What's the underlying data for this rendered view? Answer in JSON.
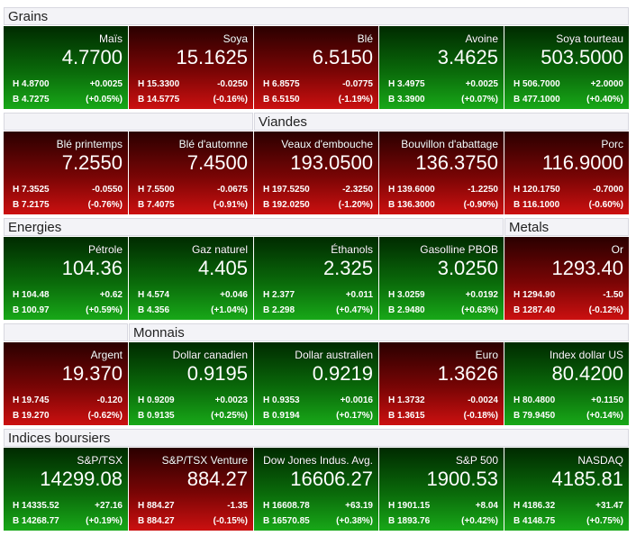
{
  "colors": {
    "up": "#18a818",
    "down": "#cc1010",
    "header_bg": "#f3f3f7"
  },
  "sections": [
    {
      "headers": [
        {
          "label": "Grains",
          "cols": [
            0,
            5
          ]
        }
      ],
      "tiles": [
        {
          "name": "Maïs",
          "price": "4.7700",
          "high": "H 4.8700",
          "low": "B 4.7275",
          "change": "+0.0025",
          "pct": "(+0.05%)",
          "dir": "up"
        },
        {
          "name": "Soya",
          "price": "15.1625",
          "high": "H 15.3300",
          "low": "B 14.5775",
          "change": "-0.0250",
          "pct": "(-0.16%)",
          "dir": "down"
        },
        {
          "name": "Blé",
          "price": "6.5150",
          "high": "H 6.8575",
          "low": "B 6.5150",
          "change": "-0.0775",
          "pct": "(-1.19%)",
          "dir": "down"
        },
        {
          "name": "Avoine",
          "price": "3.4625",
          "high": "H 3.4975",
          "low": "B 3.3900",
          "change": "+0.0025",
          "pct": "(+0.07%)",
          "dir": "up"
        },
        {
          "name": "Soya tourteau",
          "price": "503.5000",
          "high": "H 506.7000",
          "low": "B 477.1000",
          "change": "+2.0000",
          "pct": "(+0.40%)",
          "dir": "up"
        }
      ]
    },
    {
      "headers": [
        {
          "label": "",
          "cols": [
            0,
            2
          ]
        },
        {
          "label": "Viandes",
          "cols": [
            2,
            5
          ]
        }
      ],
      "tiles": [
        {
          "name": "Blé printemps",
          "price": "7.2550",
          "high": "H 7.3525",
          "low": "B 7.2175",
          "change": "-0.0550",
          "pct": "(-0.76%)",
          "dir": "down"
        },
        {
          "name": "Blé d'automne",
          "price": "7.4500",
          "high": "H 7.5500",
          "low": "B 7.4075",
          "change": "-0.0675",
          "pct": "(-0.91%)",
          "dir": "down"
        },
        {
          "name": "Veaux d'embouche",
          "price": "193.0500",
          "high": "H 197.5250",
          "low": "B 192.0250",
          "change": "-2.3250",
          "pct": "(-1.20%)",
          "dir": "down"
        },
        {
          "name": "Bouvillon d'abattage",
          "price": "136.3750",
          "high": "H 139.6000",
          "low": "B 136.3000",
          "change": "-1.2250",
          "pct": "(-0.90%)",
          "dir": "down"
        },
        {
          "name": "Porc",
          "price": "116.9000",
          "high": "H 120.1750",
          "low": "B 116.1000",
          "change": "-0.7000",
          "pct": "(-0.60%)",
          "dir": "down"
        }
      ]
    },
    {
      "headers": [
        {
          "label": "Energies",
          "cols": [
            0,
            4
          ]
        },
        {
          "label": "Metals",
          "cols": [
            4,
            5
          ]
        }
      ],
      "tiles": [
        {
          "name": "Pétrole",
          "price": "104.36",
          "high": "H 104.48",
          "low": "B 100.97",
          "change": "+0.62",
          "pct": "(+0.59%)",
          "dir": "up"
        },
        {
          "name": "Gaz naturel",
          "price": "4.405",
          "high": "H 4.574",
          "low": "B 4.356",
          "change": "+0.046",
          "pct": "(+1.04%)",
          "dir": "up"
        },
        {
          "name": "Éthanols",
          "price": "2.325",
          "high": "H 2.377",
          "low": "B 2.298",
          "change": "+0.011",
          "pct": "(+0.47%)",
          "dir": "up"
        },
        {
          "name": "Gasolline PBOB",
          "price": "3.0250",
          "high": "H 3.0259",
          "low": "B 2.9480",
          "change": "+0.0192",
          "pct": "(+0.63%)",
          "dir": "up"
        },
        {
          "name": "Or",
          "price": "1293.40",
          "high": "H 1294.90",
          "low": "B 1287.40",
          "change": "-1.50",
          "pct": "(-0.12%)",
          "dir": "down"
        }
      ]
    },
    {
      "headers": [
        {
          "label": "",
          "cols": [
            0,
            1
          ]
        },
        {
          "label": "Monnais",
          "cols": [
            1,
            5
          ]
        }
      ],
      "tiles": [
        {
          "name": "Argent",
          "price": "19.370",
          "high": "H 19.745",
          "low": "B 19.270",
          "change": "-0.120",
          "pct": "(-0.62%)",
          "dir": "down"
        },
        {
          "name": "Dollar canadien",
          "price": "0.9195",
          "high": "H 0.9209",
          "low": "B 0.9135",
          "change": "+0.0023",
          "pct": "(+0.25%)",
          "dir": "up"
        },
        {
          "name": "Dollar australien",
          "price": "0.9219",
          "high": "H 0.9353",
          "low": "B 0.9194",
          "change": "+0.0016",
          "pct": "(+0.17%)",
          "dir": "up"
        },
        {
          "name": "Euro",
          "price": "1.3626",
          "high": "H 1.3732",
          "low": "B 1.3615",
          "change": "-0.0024",
          "pct": "(-0.18%)",
          "dir": "down"
        },
        {
          "name": "Index dollar US",
          "price": "80.4200",
          "high": "H 80.4800",
          "low": "B 79.9450",
          "change": "+0.1150",
          "pct": "(+0.14%)",
          "dir": "up"
        }
      ]
    },
    {
      "headers": [
        {
          "label": "Indices boursiers",
          "cols": [
            0,
            5
          ]
        }
      ],
      "tiles": [
        {
          "name": "S&P/TSX",
          "price": "14299.08",
          "high": "H 14335.52",
          "low": "B 14268.77",
          "change": "+27.16",
          "pct": "(+0.19%)",
          "dir": "up"
        },
        {
          "name": "S&P/TSX Venture",
          "price": "884.27",
          "high": "H 884.27",
          "low": "B 884.27",
          "change": "-1.35",
          "pct": "(-0.15%)",
          "dir": "down"
        },
        {
          "name": "Dow Jones Indus. Avg.",
          "price": "16606.27",
          "high": "H 16608.78",
          "low": "B 16570.85",
          "change": "+63.19",
          "pct": "(+0.38%)",
          "dir": "up"
        },
        {
          "name": "S&P 500",
          "price": "1900.53",
          "high": "H 1901.15",
          "low": "B 1893.76",
          "change": "+8.04",
          "pct": "(+0.42%)",
          "dir": "up"
        },
        {
          "name": "NASDAQ",
          "price": "4185.81",
          "high": "H 4186.32",
          "low": "B 4148.75",
          "change": "+31.47",
          "pct": "(+0.75%)",
          "dir": "up"
        }
      ]
    }
  ]
}
